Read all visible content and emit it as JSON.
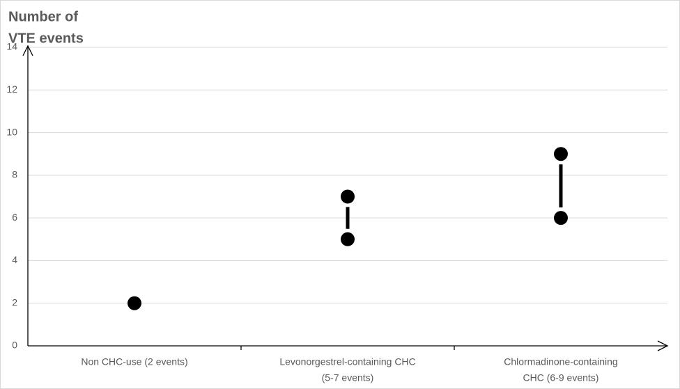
{
  "chart_data": {
    "type": "range",
    "y_label": [
      "Number of",
      "VTE events"
    ],
    "categories": [
      [
        "Non CHC-use (2 events)"
      ],
      [
        "Levonorgestrel-containing CHC",
        "(5-7 events)"
      ],
      [
        "Chlormadinone-containing",
        "CHC (6-9 events)"
      ]
    ],
    "low": [
      2,
      5,
      6
    ],
    "high": [
      null,
      7,
      9
    ],
    "color": "#000000",
    "ylim": [
      0,
      14
    ],
    "yticks": [
      0,
      2,
      4,
      6,
      8,
      10,
      12,
      14
    ],
    "grid": true
  }
}
